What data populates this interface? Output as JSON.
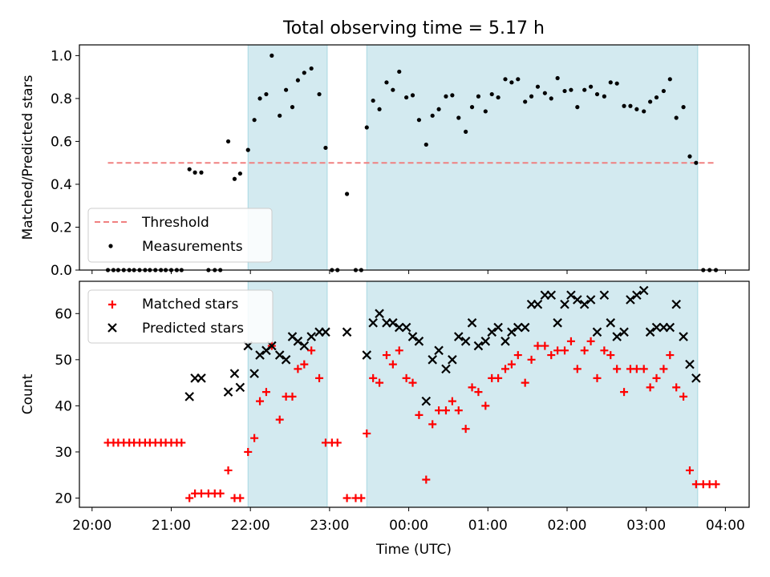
{
  "figure": {
    "title": "Total observing time = 5.17 h",
    "xlabel": "Time (UTC)",
    "x_ticks": [
      "20:00",
      "21:00",
      "22:00",
      "23:00",
      "00:00",
      "01:00",
      "02:00",
      "03:00",
      "04:00"
    ]
  },
  "colors": {
    "shade": "#d3eaf0",
    "shade_edge": "#a8d8e2",
    "threshold": "#f08080",
    "measurement": "#000000",
    "matched": "#ff0000",
    "predicted": "#000000"
  },
  "chart_data": [
    {
      "type": "scatter",
      "x_unit": "hours since 20:00 UTC",
      "xlim": [
        -0.16,
        8.3
      ],
      "ylabel": "Matched/Predicted stars",
      "ylim": [
        0.0,
        1.05
      ],
      "y_ticks": [
        "0.0",
        "0.2",
        "0.4",
        "0.6",
        "0.8",
        "1.0"
      ],
      "shaded_intervals": [
        [
          1.97,
          2.97
        ],
        [
          3.47,
          7.65
        ]
      ],
      "threshold": {
        "name": "Threshold",
        "y": 0.5,
        "x_range": [
          0.2,
          7.85
        ]
      },
      "legend": {
        "position": "lower left",
        "entries": [
          "Threshold",
          "Measurements"
        ]
      },
      "series": [
        {
          "name": "Measurements",
          "points": [
            [
              0.2,
              0
            ],
            [
              0.27,
              0
            ],
            [
              0.33,
              0
            ],
            [
              0.4,
              0
            ],
            [
              0.47,
              0
            ],
            [
              0.53,
              0
            ],
            [
              0.6,
              0
            ],
            [
              0.67,
              0
            ],
            [
              0.73,
              0
            ],
            [
              0.8,
              0
            ],
            [
              0.87,
              0
            ],
            [
              0.93,
              0
            ],
            [
              1.0,
              0
            ],
            [
              1.07,
              0
            ],
            [
              1.13,
              0
            ],
            [
              1.23,
              0.47
            ],
            [
              1.3,
              0.455
            ],
            [
              1.38,
              0.455
            ],
            [
              1.47,
              0
            ],
            [
              1.55,
              0
            ],
            [
              1.62,
              0
            ],
            [
              1.72,
              0.6
            ],
            [
              1.8,
              0.425
            ],
            [
              1.87,
              0.45
            ],
            [
              1.97,
              0.56
            ],
            [
              2.05,
              0.7
            ],
            [
              2.12,
              0.8
            ],
            [
              2.2,
              0.82
            ],
            [
              2.27,
              1.0
            ],
            [
              2.37,
              0.72
            ],
            [
              2.45,
              0.84
            ],
            [
              2.53,
              0.76
            ],
            [
              2.6,
              0.885
            ],
            [
              2.68,
              0.92
            ],
            [
              2.77,
              0.94
            ],
            [
              2.87,
              0.82
            ],
            [
              2.95,
              0.57
            ],
            [
              3.03,
              0
            ],
            [
              3.1,
              0
            ],
            [
              3.22,
              0.355
            ],
            [
              3.33,
              0
            ],
            [
              3.4,
              0
            ],
            [
              3.47,
              0.665
            ],
            [
              3.55,
              0.79
            ],
            [
              3.63,
              0.75
            ],
            [
              3.72,
              0.875
            ],
            [
              3.8,
              0.84
            ],
            [
              3.88,
              0.925
            ],
            [
              3.97,
              0.805
            ],
            [
              4.05,
              0.815
            ],
            [
              4.13,
              0.7
            ],
            [
              4.22,
              0.585
            ],
            [
              4.3,
              0.72
            ],
            [
              4.38,
              0.75
            ],
            [
              4.47,
              0.81
            ],
            [
              4.55,
              0.815
            ],
            [
              4.63,
              0.71
            ],
            [
              4.72,
              0.645
            ],
            [
              4.8,
              0.76
            ],
            [
              4.88,
              0.81
            ],
            [
              4.97,
              0.74
            ],
            [
              5.05,
              0.82
            ],
            [
              5.13,
              0.805
            ],
            [
              5.22,
              0.89
            ],
            [
              5.3,
              0.875
            ],
            [
              5.38,
              0.89
            ],
            [
              5.47,
              0.785
            ],
            [
              5.55,
              0.81
            ],
            [
              5.63,
              0.855
            ],
            [
              5.72,
              0.825
            ],
            [
              5.8,
              0.8
            ],
            [
              5.88,
              0.895
            ],
            [
              5.97,
              0.835
            ],
            [
              6.05,
              0.84
            ],
            [
              6.13,
              0.76
            ],
            [
              6.22,
              0.84
            ],
            [
              6.3,
              0.855
            ],
            [
              6.38,
              0.82
            ],
            [
              6.47,
              0.81
            ],
            [
              6.55,
              0.875
            ],
            [
              6.63,
              0.87
            ],
            [
              6.72,
              0.765
            ],
            [
              6.8,
              0.765
            ],
            [
              6.88,
              0.75
            ],
            [
              6.97,
              0.74
            ],
            [
              7.05,
              0.785
            ],
            [
              7.13,
              0.805
            ],
            [
              7.22,
              0.835
            ],
            [
              7.3,
              0.89
            ],
            [
              7.38,
              0.71
            ],
            [
              7.47,
              0.76
            ],
            [
              7.55,
              0.53
            ],
            [
              7.63,
              0.5
            ],
            [
              7.72,
              0
            ],
            [
              7.8,
              0
            ],
            [
              7.88,
              0
            ]
          ]
        }
      ]
    },
    {
      "type": "scatter",
      "x_unit": "hours since 20:00 UTC",
      "xlim": [
        -0.16,
        8.3
      ],
      "ylabel": "Count",
      "ylim": [
        18,
        67
      ],
      "y_ticks": [
        "20",
        "30",
        "40",
        "50",
        "60"
      ],
      "shaded_intervals": [
        [
          1.97,
          2.97
        ],
        [
          3.47,
          7.65
        ]
      ],
      "legend": {
        "position": "upper left",
        "entries": [
          "Matched stars",
          "Predicted stars"
        ]
      },
      "series": [
        {
          "name": "Matched stars",
          "marker": "plus",
          "points": [
            [
              0.2,
              32
            ],
            [
              0.27,
              32
            ],
            [
              0.33,
              32
            ],
            [
              0.4,
              32
            ],
            [
              0.47,
              32
            ],
            [
              0.53,
              32
            ],
            [
              0.6,
              32
            ],
            [
              0.67,
              32
            ],
            [
              0.73,
              32
            ],
            [
              0.8,
              32
            ],
            [
              0.87,
              32
            ],
            [
              0.93,
              32
            ],
            [
              1.0,
              32
            ],
            [
              1.07,
              32
            ],
            [
              1.13,
              32
            ],
            [
              1.23,
              20
            ],
            [
              1.3,
              21
            ],
            [
              1.38,
              21
            ],
            [
              1.47,
              21
            ],
            [
              1.55,
              21
            ],
            [
              1.62,
              21
            ],
            [
              1.72,
              26
            ],
            [
              1.8,
              20
            ],
            [
              1.87,
              20
            ],
            [
              1.97,
              30
            ],
            [
              2.05,
              33
            ],
            [
              2.12,
              41
            ],
            [
              2.2,
              43
            ],
            [
              2.27,
              53
            ],
            [
              2.37,
              37
            ],
            [
              2.45,
              42
            ],
            [
              2.53,
              42
            ],
            [
              2.6,
              48
            ],
            [
              2.68,
              49
            ],
            [
              2.77,
              52
            ],
            [
              2.87,
              46
            ],
            [
              2.95,
              32
            ],
            [
              3.03,
              32
            ],
            [
              3.1,
              32
            ],
            [
              3.22,
              20
            ],
            [
              3.33,
              20
            ],
            [
              3.4,
              20
            ],
            [
              3.47,
              34
            ],
            [
              3.55,
              46
            ],
            [
              3.63,
              45
            ],
            [
              3.72,
              51
            ],
            [
              3.8,
              49
            ],
            [
              3.88,
              52
            ],
            [
              3.97,
              46
            ],
            [
              4.05,
              45
            ],
            [
              4.13,
              38
            ],
            [
              4.22,
              24
            ],
            [
              4.3,
              36
            ],
            [
              4.38,
              39
            ],
            [
              4.47,
              39
            ],
            [
              4.55,
              41
            ],
            [
              4.63,
              39
            ],
            [
              4.72,
              35
            ],
            [
              4.8,
              44
            ],
            [
              4.88,
              43
            ],
            [
              4.97,
              40
            ],
            [
              5.05,
              46
            ],
            [
              5.13,
              46
            ],
            [
              5.22,
              48
            ],
            [
              5.3,
              49
            ],
            [
              5.38,
              51
            ],
            [
              5.47,
              45
            ],
            [
              5.55,
              50
            ],
            [
              5.63,
              53
            ],
            [
              5.72,
              53
            ],
            [
              5.8,
              51
            ],
            [
              5.88,
              52
            ],
            [
              5.97,
              52
            ],
            [
              6.05,
              54
            ],
            [
              6.13,
              48
            ],
            [
              6.22,
              52
            ],
            [
              6.3,
              54
            ],
            [
              6.38,
              46
            ],
            [
              6.47,
              52
            ],
            [
              6.55,
              51
            ],
            [
              6.63,
              48
            ],
            [
              6.72,
              43
            ],
            [
              6.8,
              48
            ],
            [
              6.88,
              48
            ],
            [
              6.97,
              48
            ],
            [
              7.05,
              44
            ],
            [
              7.13,
              46
            ],
            [
              7.22,
              48
            ],
            [
              7.3,
              51
            ],
            [
              7.38,
              44
            ],
            [
              7.47,
              42
            ],
            [
              7.55,
              26
            ],
            [
              7.63,
              23
            ],
            [
              7.72,
              23
            ],
            [
              7.8,
              23
            ],
            [
              7.88,
              23
            ]
          ]
        },
        {
          "name": "Predicted stars",
          "marker": "cross",
          "points": [
            [
              1.23,
              42
            ],
            [
              1.3,
              46
            ],
            [
              1.38,
              46
            ],
            [
              1.72,
              43
            ],
            [
              1.8,
              47
            ],
            [
              1.87,
              44
            ],
            [
              1.97,
              53
            ],
            [
              2.05,
              47
            ],
            [
              2.12,
              51
            ],
            [
              2.2,
              52
            ],
            [
              2.27,
              53
            ],
            [
              2.37,
              51
            ],
            [
              2.45,
              50
            ],
            [
              2.53,
              55
            ],
            [
              2.6,
              54
            ],
            [
              2.68,
              53
            ],
            [
              2.77,
              55
            ],
            [
              2.87,
              56
            ],
            [
              2.95,
              56
            ],
            [
              3.22,
              56
            ],
            [
              3.47,
              51
            ],
            [
              3.55,
              58
            ],
            [
              3.63,
              60
            ],
            [
              3.72,
              58
            ],
            [
              3.8,
              58
            ],
            [
              3.88,
              57
            ],
            [
              3.97,
              57
            ],
            [
              4.05,
              55
            ],
            [
              4.13,
              54
            ],
            [
              4.22,
              41
            ],
            [
              4.3,
              50
            ],
            [
              4.38,
              52
            ],
            [
              4.47,
              48
            ],
            [
              4.55,
              50
            ],
            [
              4.63,
              55
            ],
            [
              4.72,
              54
            ],
            [
              4.8,
              58
            ],
            [
              4.88,
              53
            ],
            [
              4.97,
              54
            ],
            [
              5.05,
              56
            ],
            [
              5.13,
              57
            ],
            [
              5.22,
              54
            ],
            [
              5.3,
              56
            ],
            [
              5.38,
              57
            ],
            [
              5.47,
              57
            ],
            [
              5.55,
              62
            ],
            [
              5.63,
              62
            ],
            [
              5.72,
              64
            ],
            [
              5.8,
              64
            ],
            [
              5.88,
              58
            ],
            [
              5.97,
              62
            ],
            [
              6.05,
              64
            ],
            [
              6.13,
              63
            ],
            [
              6.22,
              62
            ],
            [
              6.3,
              63
            ],
            [
              6.38,
              56
            ],
            [
              6.47,
              64
            ],
            [
              6.55,
              58
            ],
            [
              6.63,
              55
            ],
            [
              6.72,
              56
            ],
            [
              6.8,
              63
            ],
            [
              6.88,
              64
            ],
            [
              6.97,
              65
            ],
            [
              7.05,
              56
            ],
            [
              7.13,
              57
            ],
            [
              7.22,
              57
            ],
            [
              7.3,
              57
            ],
            [
              7.38,
              62
            ],
            [
              7.47,
              55
            ],
            [
              7.55,
              49
            ],
            [
              7.63,
              46
            ]
          ]
        }
      ]
    }
  ]
}
